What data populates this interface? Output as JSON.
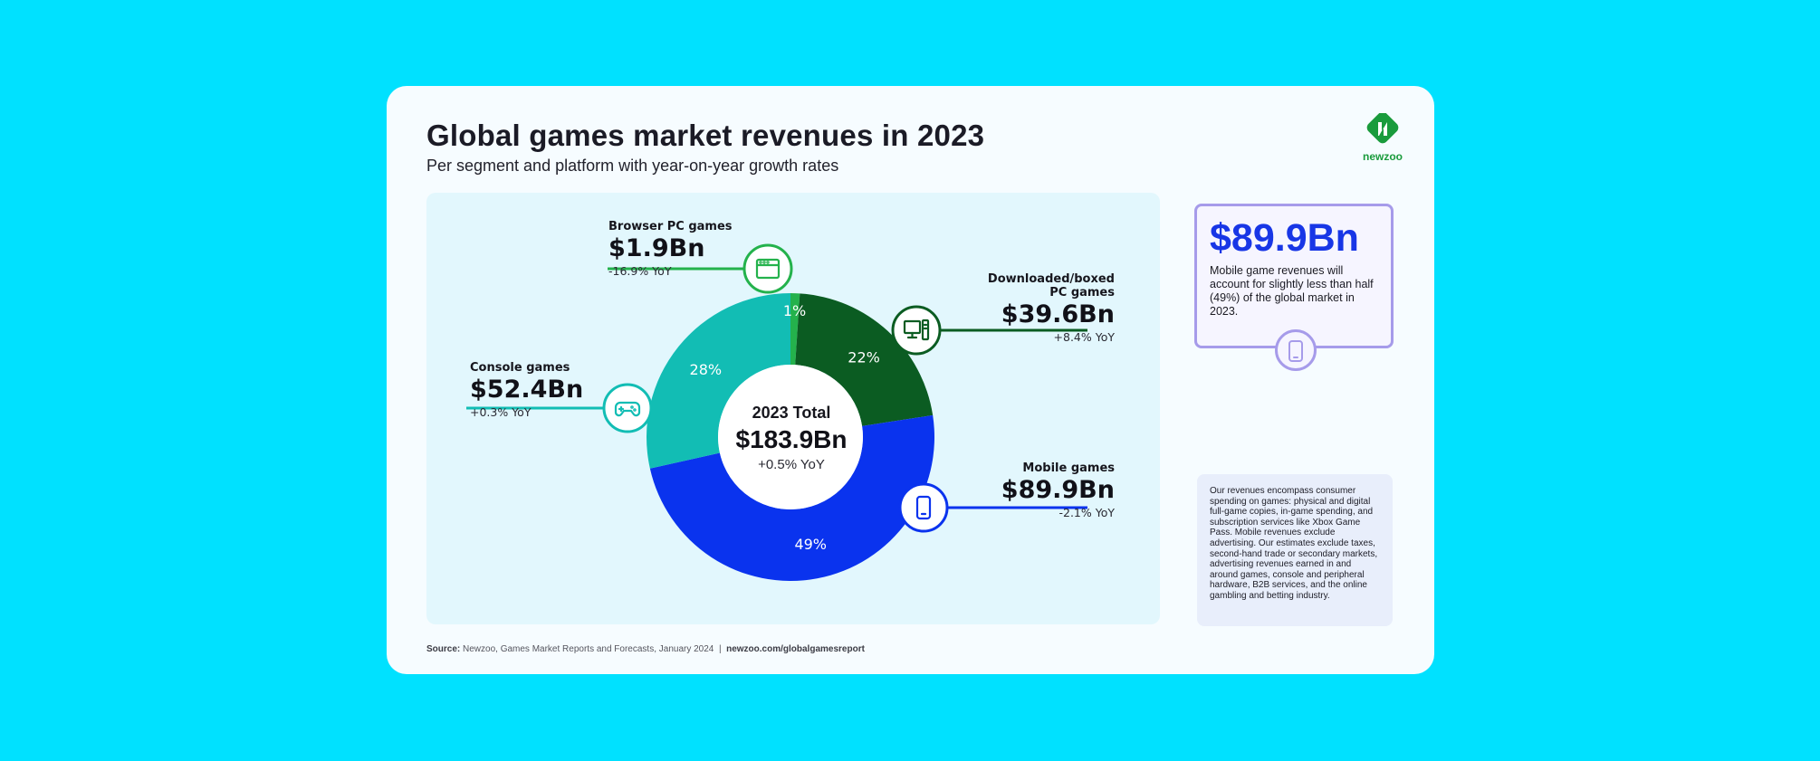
{
  "header": {
    "title": "Global games market revenues in 2023",
    "subtitle": "Per segment and platform with year-on-year growth rates",
    "logo_text": "newzoo"
  },
  "colors": {
    "background": "#00e1ff",
    "console": "#12bdb4",
    "browser_pc": "#24b24c",
    "downloaded_pc": "#0b5c22",
    "mobile": "#0a33ee",
    "accent_purple": "#a69bea"
  },
  "chart_data": {
    "type": "pie",
    "title": "Global games market revenues in 2023",
    "subtitle": "Per segment and platform with year-on-year growth rates",
    "center": {
      "title": "2023 Total",
      "value": "$183.9Bn",
      "yoy": "+0.5% YoY"
    },
    "slices": [
      {
        "name": "Browser PC games",
        "value": 1.9,
        "value_label": "$1.9Bn",
        "yoy": "-16.9% YoY",
        "percent": 1,
        "percent_label": "1%",
        "color": "#24b24c",
        "icon": "browser-window-icon"
      },
      {
        "name": "Downloaded/boxed PC games",
        "name_line1": "Downloaded/boxed",
        "name_line2": "PC games",
        "value": 39.6,
        "value_label": "$39.6Bn",
        "yoy": "+8.4% YoY",
        "percent": 22,
        "percent_label": "22%",
        "color": "#0b5c22",
        "icon": "desktop-computer-icon"
      },
      {
        "name": "Mobile games",
        "value": 89.9,
        "value_label": "$89.9Bn",
        "yoy": "-2.1% YoY",
        "percent": 49,
        "percent_label": "49%",
        "color": "#0a33ee",
        "icon": "mobile-phone-icon"
      },
      {
        "name": "Console games",
        "value": 52.4,
        "value_label": "$52.4Bn",
        "yoy": "+0.3% YoY",
        "percent": 28,
        "percent_label": "28%",
        "color": "#12bdb4",
        "icon": "gamepad-icon"
      }
    ]
  },
  "callout": {
    "value": "$89.9Bn",
    "text": "Mobile game revenues will account for slightly less than half (49%) of the global market in 2023.",
    "icon": "mobile-phone-icon"
  },
  "note": {
    "text": "Our revenues encompass consumer spending on games: physical and digital full-game copies, in-game spending, and subscription services like Xbox Game Pass. Mobile revenues exclude advertising. Our estimates exclude taxes, second-hand trade or secondary markets, advertising revenues earned in and around games, console and peripheral hardware, B2B services, and the online gambling and betting industry."
  },
  "footer": {
    "source_label": "Source:",
    "source_text": "Newzoo, Games Market Reports and Forecasts, January 2024",
    "separator": "|",
    "url": "newzoo.com/globalgamesreport"
  }
}
